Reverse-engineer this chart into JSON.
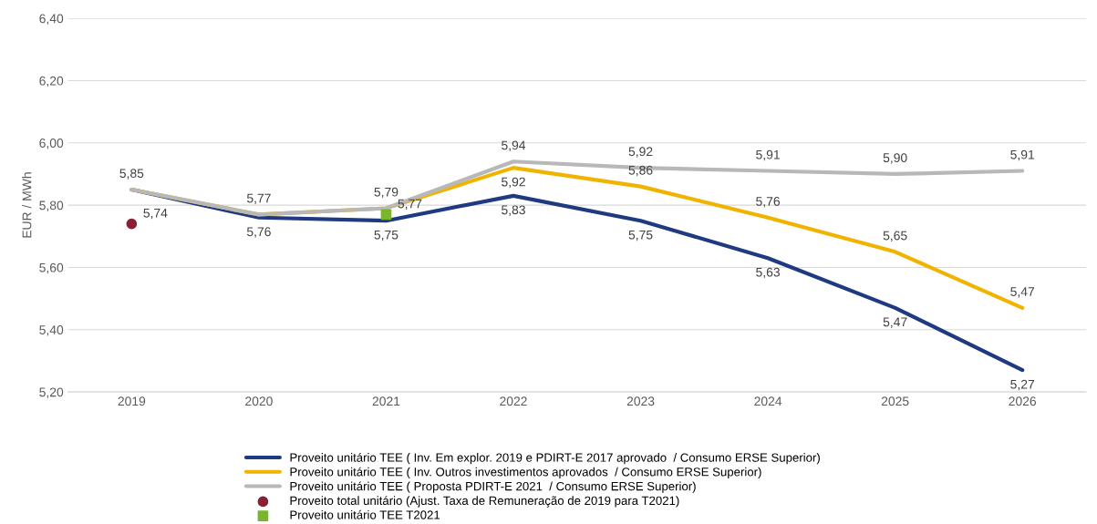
{
  "chart_data": {
    "type": "line",
    "ylabel": "EUR / MWh",
    "categories": [
      "2019",
      "2020",
      "2021",
      "2022",
      "2023",
      "2024",
      "2025",
      "2026"
    ],
    "ylim": [
      5.2,
      6.4
    ],
    "yticks": [
      {
        "value": 5.2,
        "label": "5,20"
      },
      {
        "value": 5.4,
        "label": "5,40"
      },
      {
        "value": 5.6,
        "label": "5,60"
      },
      {
        "value": 5.8,
        "label": "5,80"
      },
      {
        "value": 6.0,
        "label": "6,00"
      },
      {
        "value": 6.2,
        "label": "6,20"
      },
      {
        "value": 6.4,
        "label": "6,40"
      }
    ],
    "grid": "y",
    "legend": "bottom",
    "series": [
      {
        "name": "Proveito unitário TEE ( Inv. Em explor. 2019 e PDIRT-E 2017 aprovado  / Consumo ERSE Superior)",
        "color": "#1f3a80",
        "values": [
          5.85,
          5.76,
          5.75,
          5.83,
          5.75,
          5.63,
          5.47,
          5.27
        ],
        "value_labels": [
          null,
          "5,76",
          "5,75",
          "5,83",
          "5,75",
          "5,63",
          "5,47",
          "5,27"
        ]
      },
      {
        "name": "Proveito unitário TEE ( Inv. Outros investimentos aprovados  / Consumo ERSE Superior)",
        "color": "#f0b400",
        "values": [
          5.85,
          5.77,
          5.79,
          5.92,
          5.86,
          5.76,
          5.65,
          5.47
        ],
        "value_labels": [
          null,
          null,
          null,
          "5,92",
          "5,86",
          "5,76",
          "5,65",
          "5,47"
        ]
      },
      {
        "name": "Proveito unitário TEE ( Proposta PDIRT-E 2021  / Consumo ERSE Superior)",
        "color": "#b8b8b8",
        "values": [
          5.85,
          5.77,
          5.79,
          5.94,
          5.92,
          5.91,
          5.9,
          5.91
        ],
        "value_labels": [
          "5,85",
          "5,77",
          "5,79",
          "5,94",
          "5,92",
          "5,91",
          "5,90",
          "5,91"
        ]
      },
      {
        "type": "scatter",
        "marker": "circle",
        "name": "Proveito total unitário (Ajust. Taxa de Remuneração de 2019 para T2021)",
        "color": "#8b2035",
        "values": [
          5.74,
          null,
          null,
          null,
          null,
          null,
          null,
          null
        ],
        "value_labels": [
          "5,74",
          null,
          null,
          null,
          null,
          null,
          null,
          null
        ]
      },
      {
        "type": "scatter",
        "marker": "square",
        "name": "Proveito unitário TEE T2021",
        "color": "#7ab530",
        "values": [
          null,
          null,
          5.77,
          null,
          null,
          null,
          null,
          null
        ],
        "value_labels": [
          null,
          null,
          "5,77",
          null,
          null,
          null,
          null,
          null
        ]
      }
    ]
  }
}
